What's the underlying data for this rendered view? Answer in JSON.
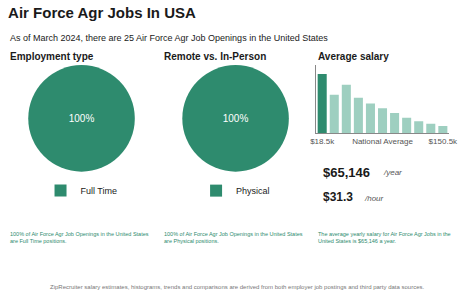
{
  "title": "Air Force Agr Jobs In USA",
  "subtitle": "As of March 2024, there are 25 Air Force Agr Job Openings in the United States",
  "annotations": [
    "ZipRecruiter salary estimates, histograms, trends and comparisons are derived from both employer job postings and third party data sources."
  ],
  "chart_data": [
    {
      "type": "pie",
      "title": "Employment type",
      "categories": [
        "Full Time"
      ],
      "values": [
        100
      ],
      "value_labels": [
        "100%"
      ],
      "colors": [
        "#2e8b6e"
      ],
      "data_labels": true,
      "legend": "bottom",
      "annotations": [
        "100% of Air Force Agr Job Openings in the United States\nare Full Time positions."
      ]
    },
    {
      "type": "pie",
      "title": "Remote vs. In-Person",
      "categories": [
        "Physical"
      ],
      "values": [
        100
      ],
      "value_labels": [
        "100%"
      ],
      "colors": [
        "#2e8b6e"
      ],
      "data_labels": true,
      "legend": "bottom",
      "annotations": [
        "100% of Air Force Agr Job Openings in the United States\nare Physical positions."
      ]
    },
    {
      "type": "bar",
      "title": "Average salary",
      "categories": [
        "$18.5k",
        null,
        null,
        null,
        null,
        "National Average",
        null,
        null,
        null,
        null,
        "$150.5k"
      ],
      "values": [
        1.0,
        0.65,
        0.82,
        0.6,
        0.5,
        0.42,
        0.34,
        0.26,
        0.2,
        0.16,
        0.12
      ],
      "colors": [
        "#2e8b6e",
        "#9ecfc0",
        "#9ecfc0",
        "#9ecfc0",
        "#9ecfc0",
        "#9ecfc0",
        "#9ecfc0",
        "#9ecfc0",
        "#9ecfc0",
        "#9ecfc0",
        "#9ecfc0"
      ],
      "ylim": [
        0,
        1.15
      ],
      "grid": false,
      "tick_labels": "x",
      "annotations": [
        "$65,146",
        "/year",
        "$31.3",
        "/hour",
        "The average yearly salary for Air Force Agr Jobs in the\nUnited States is $65,146 a year."
      ]
    }
  ]
}
